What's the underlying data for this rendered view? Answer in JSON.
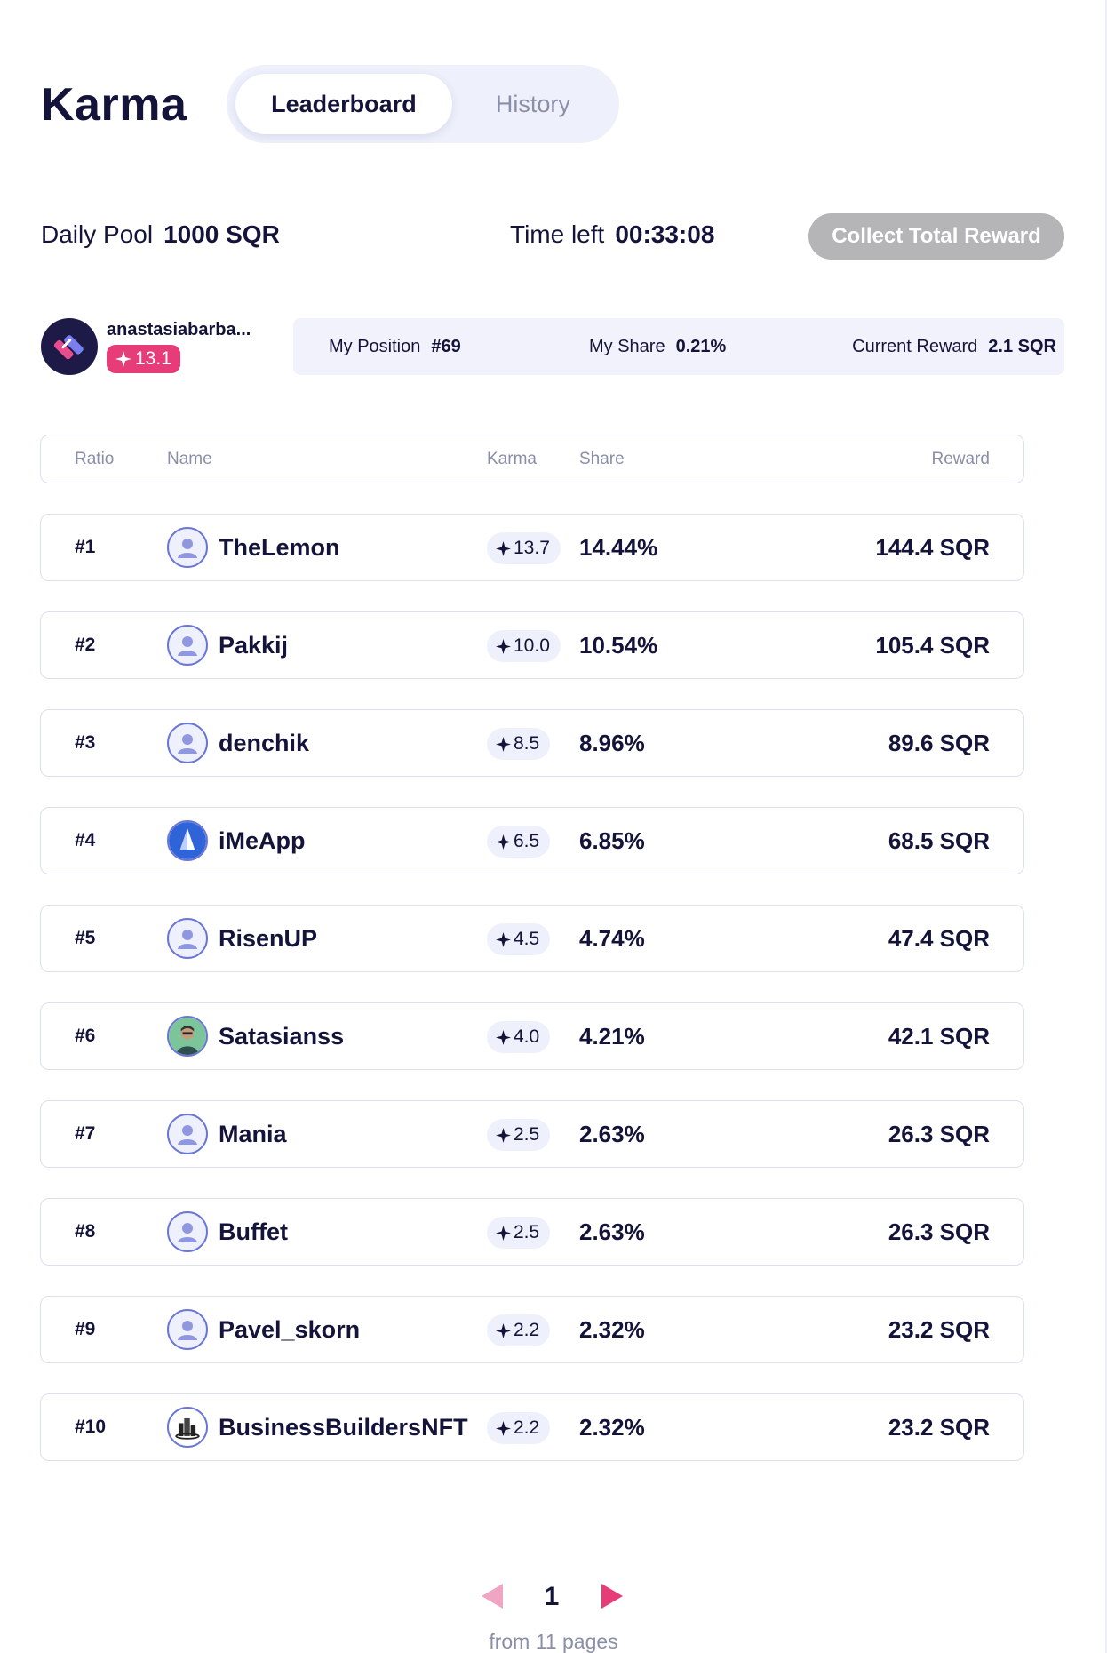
{
  "header": {
    "title": "Karma",
    "tabs": [
      {
        "label": "Leaderboard",
        "active": true
      },
      {
        "label": "History",
        "active": false
      }
    ]
  },
  "pool": {
    "daily_pool_label": "Daily Pool",
    "daily_pool_value": "1000 SQR",
    "time_left_label": "Time left",
    "time_left_value": "00:33:08",
    "collect_button": "Collect Total Reward"
  },
  "user": {
    "name": "anastasiabarba...",
    "karma": "13.1",
    "stats": {
      "position_label": "My Position",
      "position_value": "#69",
      "share_label": "My Share",
      "share_value": "0.21%",
      "reward_label": "Current Reward",
      "reward_value": "2.1 SQR"
    }
  },
  "table": {
    "headers": {
      "ratio": "Ratio",
      "name": "Name",
      "karma": "Karma",
      "share": "Share",
      "reward": "Reward"
    },
    "rows": [
      {
        "rank": "#1",
        "name": "TheLemon",
        "karma": "13.7",
        "share": "14.44%",
        "reward": "144.4 SQR",
        "avatar": "default-user-icon"
      },
      {
        "rank": "#2",
        "name": "Pakkij",
        "karma": "10.0",
        "share": "10.54%",
        "reward": "105.4 SQR",
        "avatar": "default-user-icon"
      },
      {
        "rank": "#3",
        "name": "denchik",
        "karma": "8.5",
        "share": "8.96%",
        "reward": "89.6 SQR",
        "avatar": "default-user-icon"
      },
      {
        "rank": "#4",
        "name": "iMeApp",
        "karma": "6.5",
        "share": "6.85%",
        "reward": "68.5 SQR",
        "avatar": "sail-logo-icon"
      },
      {
        "rank": "#5",
        "name": "RisenUP",
        "karma": "4.5",
        "share": "4.74%",
        "reward": "47.4 SQR",
        "avatar": "default-user-icon"
      },
      {
        "rank": "#6",
        "name": "Satasianss",
        "karma": "4.0",
        "share": "4.21%",
        "reward": "42.1 SQR",
        "avatar": "photo-avatar"
      },
      {
        "rank": "#7",
        "name": "Mania",
        "karma": "2.5",
        "share": "2.63%",
        "reward": "26.3 SQR",
        "avatar": "default-user-icon"
      },
      {
        "rank": "#8",
        "name": "Buffet",
        "karma": "2.5",
        "share": "2.63%",
        "reward": "26.3 SQR",
        "avatar": "default-user-icon"
      },
      {
        "rank": "#9",
        "name": "Pavel_skorn",
        "karma": "2.2",
        "share": "2.32%",
        "reward": "23.2 SQR",
        "avatar": "default-user-icon"
      },
      {
        "rank": "#10",
        "name": "BusinessBuildersNFT",
        "karma": "2.2",
        "share": "2.32%",
        "reward": "23.2 SQR",
        "avatar": "building-logo-icon"
      }
    ]
  },
  "pagination": {
    "current_page": "1",
    "total_label": "from 11 pages"
  },
  "colors": {
    "text": "#14143a",
    "muted": "#8a8ea8",
    "accent_pink": "#e63d79",
    "surface": "#eef0fb",
    "disabled_button": "#b5b5b8",
    "avatar_border": "#6a76d6"
  }
}
